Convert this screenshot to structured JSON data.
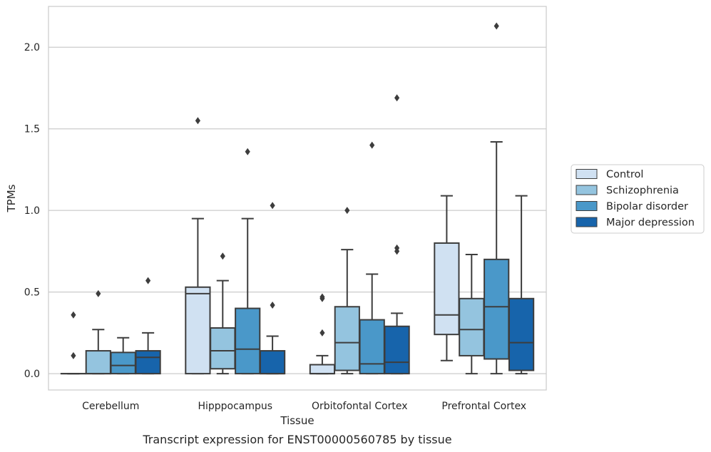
{
  "chart_data": {
    "type": "box",
    "title": "",
    "caption": "Transcript expression for ENST00000560785 by tissue",
    "xlabel": "Tissue",
    "ylabel": "TPMs",
    "ylim": [
      -0.1,
      2.25
    ],
    "yticks": [
      "0.0",
      "0.5",
      "1.0",
      "1.5",
      "2.0"
    ],
    "grid": "horizontal",
    "legend_position": "right",
    "categories": [
      "Cerebellum",
      "Hipppocampus",
      "Orbitofontal Cortex",
      "Prefrontal Cortex"
    ],
    "series": [
      {
        "name": "Control",
        "color": "#d0e1f2",
        "boxes": [
          {
            "whislo": 0.0,
            "q1": 0.0,
            "med": 0.0,
            "q3": 0.0,
            "whishi": 0.0,
            "fliers": [
              0.36,
              0.11
            ]
          },
          {
            "whislo": 0.0,
            "q1": 0.0,
            "med": 0.49,
            "q3": 0.53,
            "whishi": 0.95,
            "fliers": [
              1.55
            ]
          },
          {
            "whislo": 0.0,
            "q1": 0.0,
            "med": 0.0,
            "q3": 0.055,
            "whishi": 0.11,
            "fliers": [
              0.47,
              0.46,
              0.25
            ]
          },
          {
            "whislo": 0.08,
            "q1": 0.24,
            "med": 0.36,
            "q3": 0.8,
            "whishi": 1.09,
            "fliers": []
          }
        ]
      },
      {
        "name": "Schizophrenia",
        "color": "#94c4df",
        "boxes": [
          {
            "whislo": 0.0,
            "q1": 0.0,
            "med": 0.0,
            "q3": 0.14,
            "whishi": 0.27,
            "fliers": [
              0.49
            ]
          },
          {
            "whislo": 0.0,
            "q1": 0.03,
            "med": 0.14,
            "q3": 0.28,
            "whishi": 0.57,
            "fliers": [
              0.72
            ]
          },
          {
            "whislo": 0.0,
            "q1": 0.02,
            "med": 0.19,
            "q3": 0.41,
            "whishi": 0.76,
            "fliers": [
              1.0
            ]
          },
          {
            "whislo": 0.0,
            "q1": 0.11,
            "med": 0.27,
            "q3": 0.46,
            "whishi": 0.73,
            "fliers": []
          }
        ]
      },
      {
        "name": "Bipolar disorder",
        "color": "#4a98c9",
        "boxes": [
          {
            "whislo": 0.0,
            "q1": 0.0,
            "med": 0.05,
            "q3": 0.13,
            "whishi": 0.22,
            "fliers": []
          },
          {
            "whislo": 0.0,
            "q1": 0.0,
            "med": 0.15,
            "q3": 0.4,
            "whishi": 0.95,
            "fliers": [
              1.36
            ]
          },
          {
            "whislo": 0.0,
            "q1": 0.0,
            "med": 0.06,
            "q3": 0.33,
            "whishi": 0.61,
            "fliers": [
              1.4
            ]
          },
          {
            "whislo": 0.0,
            "q1": 0.09,
            "med": 0.41,
            "q3": 0.7,
            "whishi": 1.42,
            "fliers": [
              2.13
            ]
          }
        ]
      },
      {
        "name": "Major depression",
        "color": "#1764ab",
        "boxes": [
          {
            "whislo": 0.0,
            "q1": 0.0,
            "med": 0.1,
            "q3": 0.14,
            "whishi": 0.25,
            "fliers": [
              0.57
            ]
          },
          {
            "whislo": 0.0,
            "q1": 0.0,
            "med": 0.0,
            "q3": 0.14,
            "whishi": 0.23,
            "fliers": [
              1.03,
              0.42
            ]
          },
          {
            "whislo": 0.0,
            "q1": 0.0,
            "med": 0.07,
            "q3": 0.29,
            "whishi": 0.37,
            "fliers": [
              1.69,
              0.77,
              0.75
            ]
          },
          {
            "whislo": 0.0,
            "q1": 0.02,
            "med": 0.19,
            "q3": 0.46,
            "whishi": 1.09,
            "fliers": []
          }
        ]
      }
    ]
  }
}
